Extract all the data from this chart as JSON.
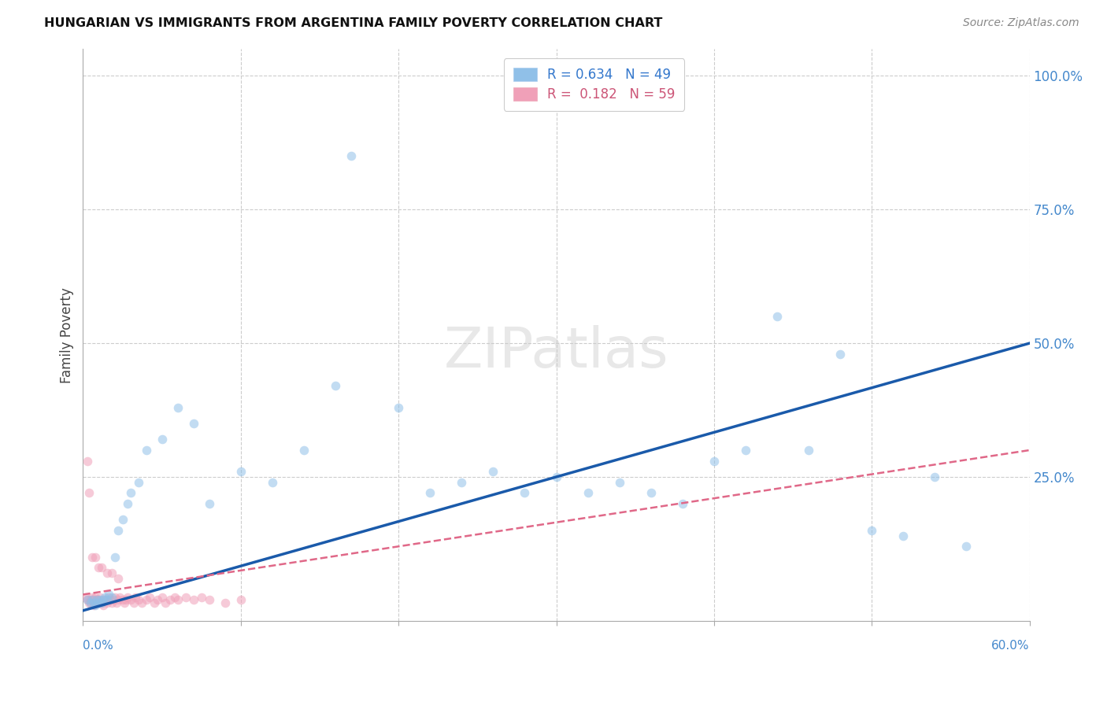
{
  "title": "HUNGARIAN VS IMMIGRANTS FROM ARGENTINA FAMILY POVERTY CORRELATION CHART",
  "source": "Source: ZipAtlas.com",
  "ylabel": "Family Poverty",
  "xlim": [
    0.0,
    0.6
  ],
  "ylim": [
    -0.02,
    1.05
  ],
  "right_yticks": [
    1.0,
    0.75,
    0.5,
    0.25
  ],
  "right_yticklabels": [
    "100.0%",
    "75.0%",
    "50.0%",
    "25.0%"
  ],
  "legend_label_blue": "R = 0.634   N = 49",
  "legend_label_pink": "R =  0.182   N = 59",
  "blue_color": "#90c0e8",
  "pink_color": "#f0a0b8",
  "blue_line_color": "#1a5aaa",
  "pink_line_color": "#e06888",
  "watermark": "ZIPatlas",
  "marker_size": 70,
  "alpha": 0.55,
  "hungarian_x": [
    0.003,
    0.005,
    0.006,
    0.007,
    0.008,
    0.009,
    0.01,
    0.011,
    0.012,
    0.013,
    0.014,
    0.015,
    0.016,
    0.018,
    0.02,
    0.022,
    0.025,
    0.028,
    0.03,
    0.035,
    0.04,
    0.05,
    0.06,
    0.07,
    0.08,
    0.1,
    0.12,
    0.14,
    0.16,
    0.2,
    0.22,
    0.24,
    0.26,
    0.28,
    0.3,
    0.32,
    0.34,
    0.36,
    0.38,
    0.4,
    0.42,
    0.44,
    0.46,
    0.48,
    0.5,
    0.52,
    0.54,
    0.56,
    0.17
  ],
  "hungarian_y": [
    0.02,
    0.015,
    0.02,
    0.015,
    0.01,
    0.02,
    0.015,
    0.02,
    0.015,
    0.02,
    0.025,
    0.02,
    0.03,
    0.025,
    0.1,
    0.15,
    0.17,
    0.2,
    0.22,
    0.24,
    0.3,
    0.32,
    0.38,
    0.35,
    0.2,
    0.26,
    0.24,
    0.3,
    0.42,
    0.38,
    0.22,
    0.24,
    0.26,
    0.22,
    0.25,
    0.22,
    0.24,
    0.22,
    0.2,
    0.28,
    0.3,
    0.55,
    0.3,
    0.48,
    0.15,
    0.14,
    0.25,
    0.12,
    0.85
  ],
  "argentina_x": [
    0.002,
    0.003,
    0.004,
    0.005,
    0.005,
    0.006,
    0.007,
    0.007,
    0.008,
    0.008,
    0.009,
    0.01,
    0.01,
    0.011,
    0.012,
    0.013,
    0.014,
    0.015,
    0.016,
    0.017,
    0.018,
    0.019,
    0.02,
    0.021,
    0.022,
    0.023,
    0.025,
    0.026,
    0.027,
    0.028,
    0.03,
    0.032,
    0.033,
    0.035,
    0.037,
    0.04,
    0.042,
    0.045,
    0.047,
    0.05,
    0.052,
    0.055,
    0.058,
    0.06,
    0.065,
    0.07,
    0.075,
    0.08,
    0.09,
    0.1,
    0.003,
    0.004,
    0.006,
    0.008,
    0.01,
    0.012,
    0.015,
    0.018,
    0.022
  ],
  "argentina_y": [
    0.025,
    0.02,
    0.015,
    0.02,
    0.015,
    0.025,
    0.01,
    0.02,
    0.015,
    0.025,
    0.02,
    0.015,
    0.02,
    0.025,
    0.015,
    0.01,
    0.02,
    0.015,
    0.025,
    0.02,
    0.015,
    0.02,
    0.025,
    0.015,
    0.02,
    0.025,
    0.02,
    0.015,
    0.02,
    0.025,
    0.02,
    0.015,
    0.025,
    0.02,
    0.015,
    0.02,
    0.025,
    0.015,
    0.02,
    0.025,
    0.015,
    0.02,
    0.025,
    0.02,
    0.025,
    0.02,
    0.025,
    0.02,
    0.015,
    0.02,
    0.28,
    0.22,
    0.1,
    0.1,
    0.08,
    0.08,
    0.07,
    0.07,
    0.06
  ],
  "blue_line_x": [
    0.0,
    0.6
  ],
  "blue_line_y": [
    0.0,
    0.5
  ],
  "pink_line_x": [
    0.0,
    0.6
  ],
  "pink_line_y": [
    0.03,
    0.3
  ]
}
